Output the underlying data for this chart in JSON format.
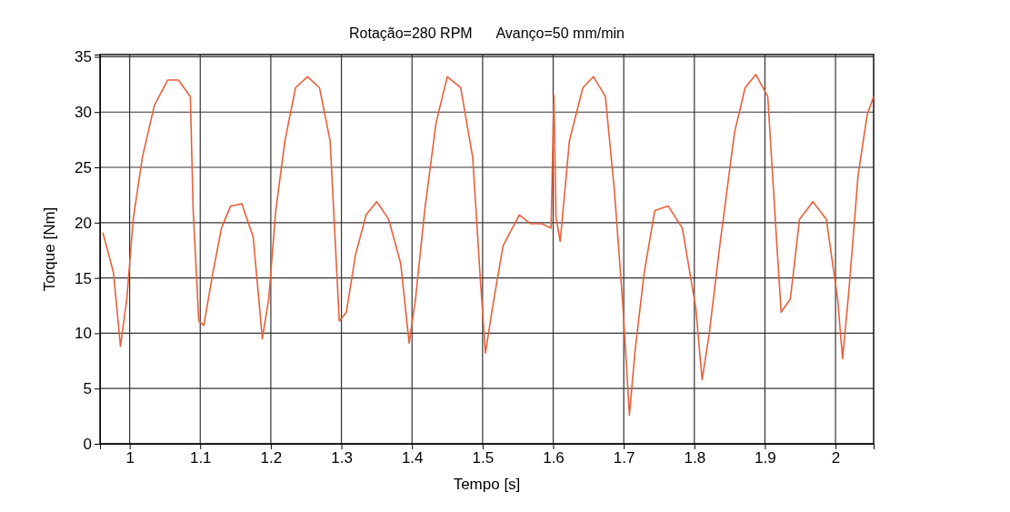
{
  "chart_data": {
    "type": "line",
    "xlabel": "Tempo [s]",
    "ylabel": "Torque [Nm]",
    "annotations": [
      "Rotação=280 RPM      Avanço=50 mm/min"
    ],
    "xlim": [
      0.958,
      2.054
    ],
    "xticks": [
      1,
      1.1,
      1.2,
      1.3,
      1.4,
      1.5,
      1.6,
      1.7,
      1.8,
      1.9,
      2
    ],
    "ylim": [
      0,
      35.2
    ],
    "yticks": [
      0,
      5,
      10,
      15,
      20,
      25,
      30,
      35
    ],
    "grid": true,
    "series": [
      {
        "color": "#e8603a",
        "x": [
          0.962,
          0.977,
          0.987,
          0.996,
          1.005,
          1.018,
          1.035,
          1.054,
          1.069,
          1.086,
          1.09,
          1.098,
          1.105,
          1.118,
          1.13,
          1.143,
          1.159,
          1.175,
          1.188,
          1.197,
          1.207,
          1.22,
          1.235,
          1.252,
          1.269,
          1.284,
          1.297,
          1.307,
          1.32,
          1.335,
          1.35,
          1.367,
          1.384,
          1.396,
          1.405,
          1.418,
          1.434,
          1.45,
          1.469,
          1.486,
          1.497,
          1.504,
          1.514,
          1.529,
          1.552,
          1.568,
          1.584,
          1.597,
          1.601,
          1.604,
          1.61,
          1.623,
          1.642,
          1.657,
          1.674,
          1.687,
          1.699,
          1.708,
          1.716,
          1.729,
          1.744,
          1.763,
          1.783,
          1.802,
          1.811,
          1.821,
          1.836,
          1.857,
          1.872,
          1.887,
          1.904,
          1.917,
          1.923,
          1.936,
          1.949,
          1.968,
          1.987,
          2.003,
          2.01,
          2.019,
          2.032,
          2.045,
          2.054
        ],
        "values": [
          19.1,
          15.5,
          8.8,
          13.1,
          20.3,
          25.9,
          30.6,
          32.9,
          32.9,
          31.4,
          21.1,
          11.1,
          10.7,
          15.5,
          19.5,
          21.5,
          21.7,
          18.7,
          9.5,
          13.1,
          21.1,
          27.4,
          32.2,
          33.2,
          32.2,
          27.4,
          11.1,
          11.9,
          17.1,
          20.7,
          21.9,
          20.3,
          16.3,
          9.1,
          13.1,
          21.1,
          29,
          33.2,
          32.2,
          25.9,
          14.7,
          8.2,
          12.3,
          17.9,
          20.7,
          19.9,
          19.9,
          19.5,
          31.5,
          20.5,
          18.3,
          27.4,
          32.2,
          33.2,
          31.4,
          22.7,
          12.3,
          2.6,
          8.4,
          15.5,
          21.1,
          21.5,
          19.5,
          12.3,
          5.8,
          9.9,
          17.9,
          28.2,
          32.2,
          33.4,
          31.4,
          17.9,
          11.9,
          13.1,
          20.3,
          21.9,
          20.3,
          13.1,
          7.7,
          13.9,
          24.3,
          29.8,
          31.4
        ]
      }
    ]
  }
}
